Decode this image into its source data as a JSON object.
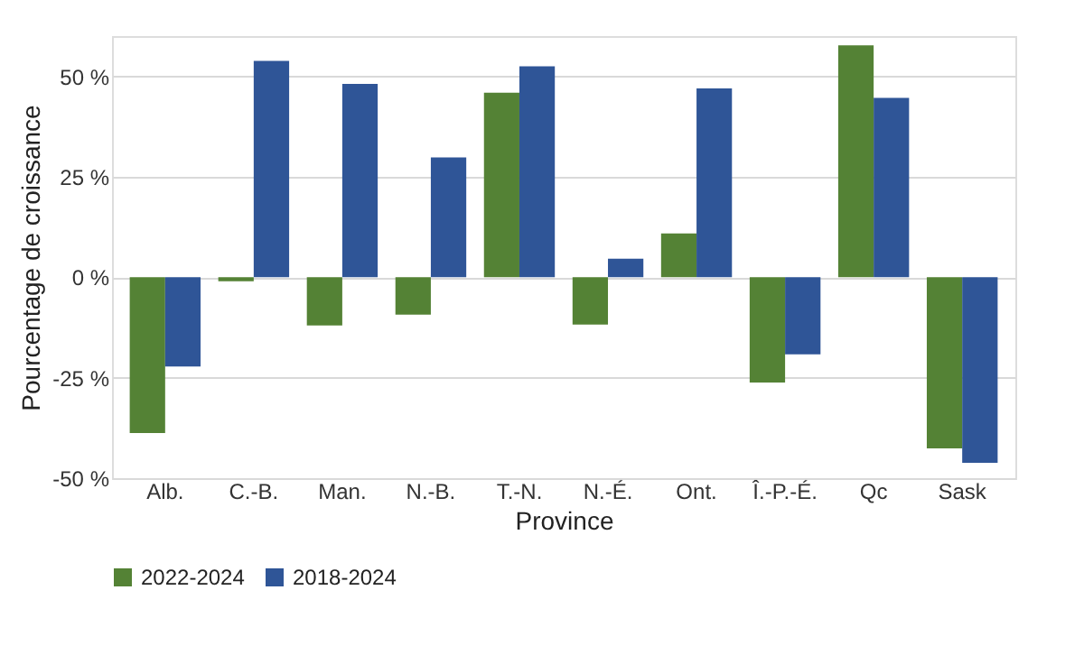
{
  "chart_data": {
    "type": "bar",
    "xlabel": "Province",
    "ylabel": "Pourcentage de croissance",
    "categories": [
      "Alb.",
      "C.-B.",
      "Man.",
      "N.-B.",
      "T.-N.",
      "N.-É.",
      "Ont.",
      "Î.-P.-É.",
      "Qc",
      "Sask"
    ],
    "series": [
      {
        "name": "2022-2024",
        "color": "#548235",
        "values": [
          -38.8,
          -1,
          -12,
          -9.3,
          45.9,
          -11.8,
          10.9,
          -26.2,
          57.7,
          -42.6
        ]
      },
      {
        "name": "2018-2024",
        "color": "#2f5597",
        "values": [
          -22.2,
          53.8,
          48.1,
          29.8,
          52.5,
          4.6,
          47,
          -19.2,
          44.6,
          -46.2
        ]
      }
    ],
    "ylim": [
      -50,
      60
    ],
    "yticks": [
      {
        "value": -50,
        "label": "-50 %"
      },
      {
        "value": -25,
        "label": "-25 %"
      },
      {
        "value": 0,
        "label": "0 %"
      },
      {
        "value": 25,
        "label": "25 %"
      },
      {
        "value": 50,
        "label": "50 %"
      }
    ],
    "grid": "y",
    "legend": "bottom"
  }
}
